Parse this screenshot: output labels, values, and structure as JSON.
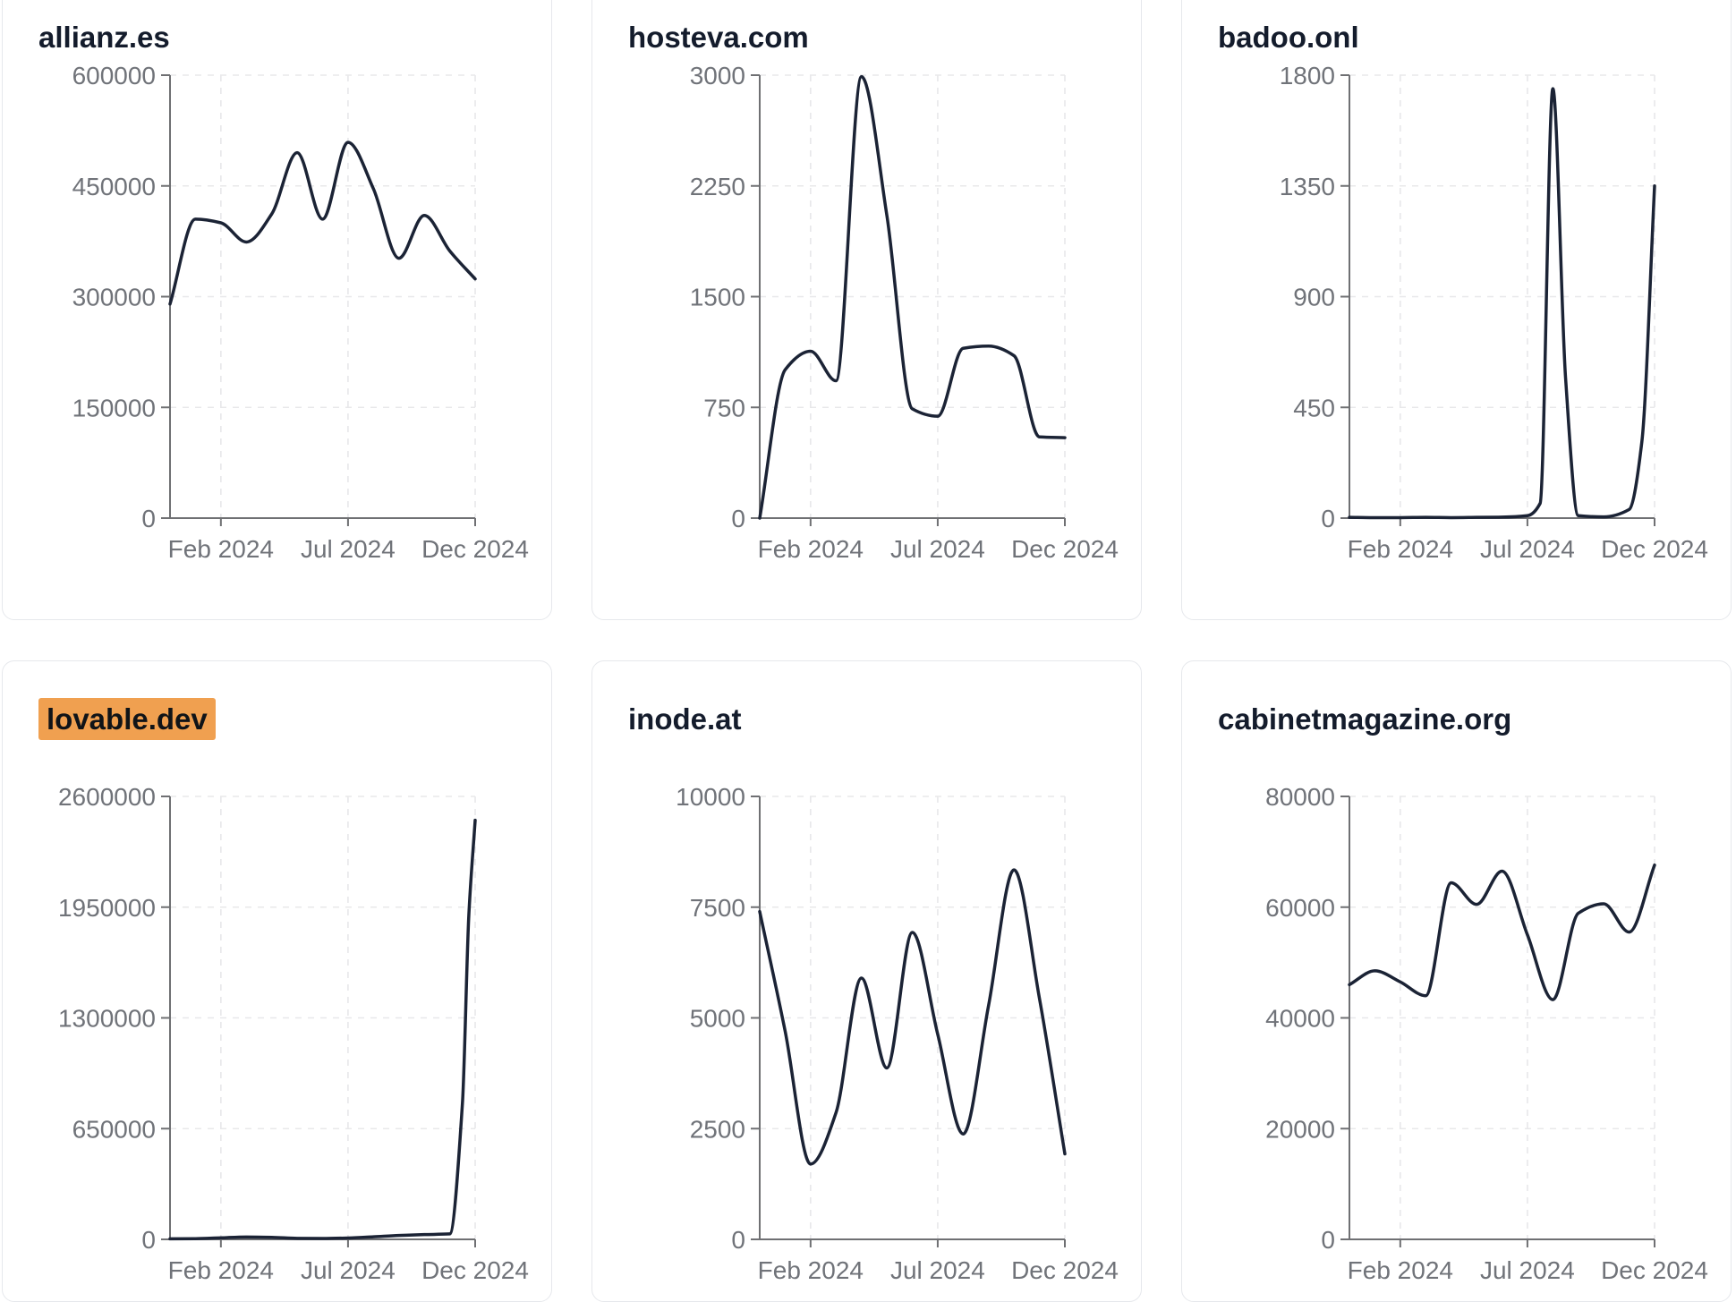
{
  "style": {
    "page_bg": "#ffffff",
    "card_bg": "#ffffff",
    "card_border": "#e6e8ec",
    "title_color": "#141c2c",
    "line_color": "#1b2335",
    "axis_color": "#6f7073",
    "tick_label_color": "#707379",
    "grid_color": "#e8e8ea",
    "highlight_bg": "#f0a050",
    "highlight_text": "#101418"
  },
  "chart_data": [
    {
      "type": "line",
      "title": "allianz.es",
      "title_highlighted": false,
      "x_unit": "months since Dec 2023",
      "xlim": [
        0,
        12
      ],
      "ylim": [
        0,
        600000
      ],
      "grid": "dashed",
      "y_ticks": [
        0,
        150000,
        300000,
        450000,
        600000
      ],
      "x_ticks": [
        {
          "m": 2,
          "label": "Feb 2024"
        },
        {
          "m": 7,
          "label": "Jul 2024"
        },
        {
          "m": 12,
          "label": "Dec 2024"
        }
      ],
      "points": [
        [
          0,
          290000
        ],
        [
          1,
          405000
        ],
        [
          2,
          400000
        ],
        [
          3,
          374000
        ],
        [
          4,
          412000
        ],
        [
          5,
          495000
        ],
        [
          6,
          405000
        ],
        [
          7,
          509000
        ],
        [
          8,
          446000
        ],
        [
          9,
          352000
        ],
        [
          10,
          410000
        ],
        [
          11,
          362000
        ],
        [
          12,
          324000
        ]
      ]
    },
    {
      "type": "line",
      "title": "hosteva.com",
      "title_highlighted": false,
      "x_unit": "months since Dec 2023",
      "xlim": [
        0,
        12
      ],
      "ylim": [
        0,
        3000
      ],
      "grid": "dashed",
      "y_ticks": [
        0,
        750,
        1500,
        2250,
        3000
      ],
      "x_ticks": [
        {
          "m": 2,
          "label": "Feb 2024"
        },
        {
          "m": 7,
          "label": "Jul 2024"
        },
        {
          "m": 12,
          "label": "Dec 2024"
        }
      ],
      "points": [
        [
          0,
          0
        ],
        [
          1,
          1005
        ],
        [
          2,
          1130
        ],
        [
          3,
          930
        ],
        [
          4,
          2990
        ],
        [
          5,
          2050
        ],
        [
          6,
          740
        ],
        [
          7,
          690
        ],
        [
          8,
          1150
        ],
        [
          9,
          1165
        ],
        [
          10,
          1100
        ],
        [
          11,
          550
        ],
        [
          12,
          545
        ]
      ]
    },
    {
      "type": "line",
      "title": "badoo.onl",
      "title_highlighted": false,
      "x_unit": "months since Dec 2023",
      "xlim": [
        0,
        12
      ],
      "ylim": [
        0,
        1800
      ],
      "grid": "dashed",
      "y_ticks": [
        0,
        450,
        900,
        1350,
        1800
      ],
      "x_ticks": [
        {
          "m": 2,
          "label": "Feb 2024"
        },
        {
          "m": 7,
          "label": "Jul 2024"
        },
        {
          "m": 12,
          "label": "Dec 2024"
        }
      ],
      "points": [
        [
          0,
          3
        ],
        [
          1,
          2
        ],
        [
          2,
          2
        ],
        [
          3,
          3
        ],
        [
          4,
          2
        ],
        [
          5,
          3
        ],
        [
          6,
          4
        ],
        [
          7,
          10
        ],
        [
          7.5,
          60
        ],
        [
          8,
          1745
        ],
        [
          8.5,
          570
        ],
        [
          9,
          10
        ],
        [
          10,
          5
        ],
        [
          11,
          35
        ],
        [
          11.5,
          310
        ],
        [
          12,
          1350
        ]
      ]
    },
    {
      "type": "line",
      "title": "lovable.dev",
      "title_highlighted": true,
      "x_unit": "months since Dec 2023",
      "xlim": [
        0,
        12
      ],
      "ylim": [
        0,
        2600000
      ],
      "grid": "dashed",
      "y_ticks": [
        0,
        650000,
        1300000,
        1950000,
        2600000
      ],
      "x_ticks": [
        {
          "m": 2,
          "label": "Feb 2024"
        },
        {
          "m": 7,
          "label": "Jul 2024"
        },
        {
          "m": 12,
          "label": "Dec 2024"
        }
      ],
      "points": [
        [
          0,
          3000
        ],
        [
          1,
          4000
        ],
        [
          2,
          9000
        ],
        [
          3,
          14000
        ],
        [
          4,
          12000
        ],
        [
          5,
          6000
        ],
        [
          6,
          5000
        ],
        [
          7,
          8000
        ],
        [
          8,
          15000
        ],
        [
          9,
          23000
        ],
        [
          10,
          28000
        ],
        [
          11,
          32000
        ],
        [
          11.5,
          800000
        ],
        [
          11.75,
          1900000
        ],
        [
          12,
          2460000
        ]
      ]
    },
    {
      "type": "line",
      "title": "inode.at",
      "title_highlighted": false,
      "x_unit": "months since Dec 2023",
      "xlim": [
        0,
        12
      ],
      "ylim": [
        0,
        10000
      ],
      "grid": "dashed",
      "y_ticks": [
        0,
        2500,
        5000,
        7500,
        10000
      ],
      "x_ticks": [
        {
          "m": 2,
          "label": "Feb 2024"
        },
        {
          "m": 7,
          "label": "Jul 2024"
        },
        {
          "m": 12,
          "label": "Dec 2024"
        }
      ],
      "points": [
        [
          0,
          7400
        ],
        [
          1,
          4700
        ],
        [
          2,
          1700
        ],
        [
          3,
          2860
        ],
        [
          4,
          5900
        ],
        [
          5,
          3870
        ],
        [
          6,
          6930
        ],
        [
          7,
          4630
        ],
        [
          8,
          2380
        ],
        [
          9,
          5280
        ],
        [
          10,
          8340
        ],
        [
          11,
          5440
        ],
        [
          12,
          1930
        ]
      ]
    },
    {
      "type": "line",
      "title": "cabinetmagazine.org",
      "title_highlighted": false,
      "x_unit": "months since Dec 2023",
      "xlim": [
        0,
        12
      ],
      "ylim": [
        0,
        80000
      ],
      "grid": "dashed",
      "y_ticks": [
        0,
        20000,
        40000,
        60000,
        80000
      ],
      "x_ticks": [
        {
          "m": 2,
          "label": "Feb 2024"
        },
        {
          "m": 7,
          "label": "Jul 2024"
        },
        {
          "m": 12,
          "label": "Dec 2024"
        }
      ],
      "points": [
        [
          0,
          46000
        ],
        [
          1,
          48500
        ],
        [
          2,
          46500
        ],
        [
          3,
          44000
        ],
        [
          4,
          64400
        ],
        [
          5,
          60500
        ],
        [
          6,
          66500
        ],
        [
          7,
          55000
        ],
        [
          8,
          43300
        ],
        [
          9,
          58900
        ],
        [
          10,
          60600
        ],
        [
          11,
          55500
        ],
        [
          12,
          67600
        ]
      ]
    }
  ]
}
